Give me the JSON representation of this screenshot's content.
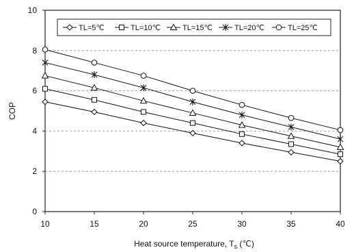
{
  "chart_data": {
    "type": "line",
    "xlabel_main": "Heat source temperature, T",
    "xlabel_sub": "s",
    "xlabel_unit": " (℃)",
    "ylabel": "COP",
    "x": [
      10,
      15,
      20,
      25,
      30,
      35,
      40
    ],
    "xlim": [
      10,
      40
    ],
    "ylim": [
      0,
      10
    ],
    "xticks": [
      "10",
      "15",
      "20",
      "25",
      "30",
      "35",
      "40"
    ],
    "yticks": [
      "0",
      "2",
      "4",
      "6",
      "8",
      "10"
    ],
    "grid": "horizontal dashed",
    "legend_position": "top",
    "series": [
      {
        "name": "TL=5℃",
        "marker": "diamond",
        "values": [
          5.45,
          4.95,
          4.4,
          3.9,
          3.4,
          2.95,
          2.5
        ]
      },
      {
        "name": "TL=10℃",
        "marker": "square",
        "values": [
          6.1,
          5.55,
          4.95,
          4.4,
          3.85,
          3.35,
          2.85
        ]
      },
      {
        "name": "TL=15℃",
        "marker": "triangle",
        "values": [
          6.75,
          6.15,
          5.5,
          4.9,
          4.3,
          3.75,
          3.2
        ]
      },
      {
        "name": "TL=20℃",
        "marker": "asterisk",
        "values": [
          7.4,
          6.8,
          6.15,
          5.45,
          4.8,
          4.2,
          3.6
        ]
      },
      {
        "name": "TL=25℃",
        "marker": "circle",
        "values": [
          8.05,
          7.4,
          6.75,
          6.0,
          5.3,
          4.65,
          4.05
        ]
      }
    ]
  }
}
